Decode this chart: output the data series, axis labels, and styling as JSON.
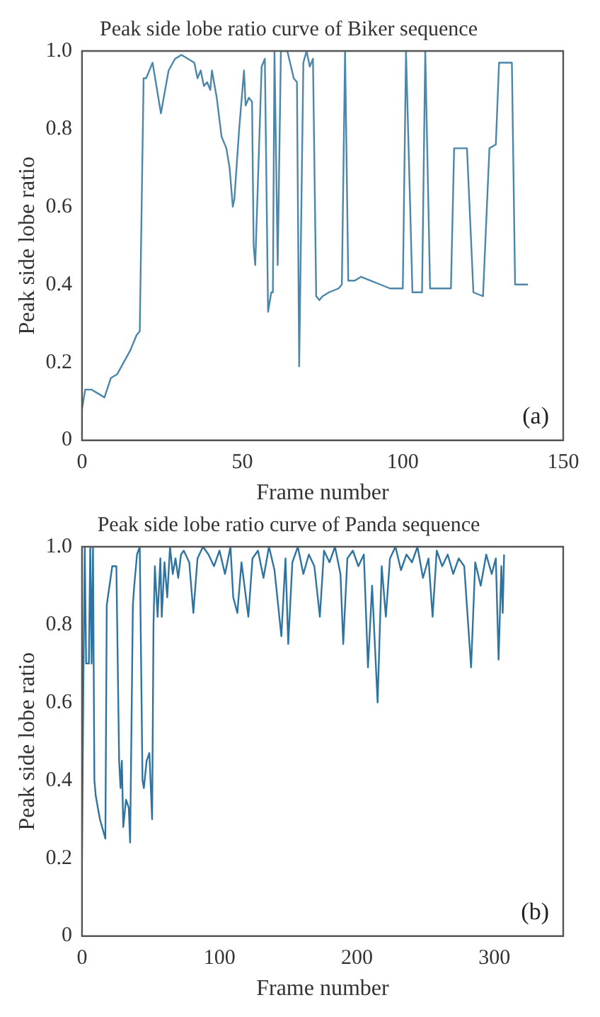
{
  "chart_data": [
    {
      "type": "line",
      "title": "Peak side lobe ratio curve of Biker sequence",
      "xlabel": "Frame number",
      "ylabel": "Peak side lobe ratio",
      "annotations": [
        "(a)"
      ],
      "xlim": [
        0,
        150
      ],
      "xticks": [
        0,
        50,
        100,
        150
      ],
      "ylim": [
        0,
        1
      ],
      "yticks": [
        0,
        0.2,
        0.4,
        0.6,
        0.8,
        {
          "value": 1,
          "label": "1.0"
        }
      ],
      "grid": false,
      "legend": false,
      "series": [
        {
          "color": "#4a87ab",
          "x": [
            0,
            1,
            3,
            5,
            7,
            9,
            11,
            13,
            15,
            17,
            18,
            19.2,
            20,
            21,
            22,
            24.6,
            27,
            29,
            31,
            33,
            35,
            36,
            37,
            38,
            39,
            40,
            40.5,
            42,
            43.5,
            45,
            46,
            47,
            47.5,
            49,
            50.5,
            51,
            52,
            53,
            53.5,
            54,
            56,
            57,
            58,
            59,
            59.5,
            60,
            61,
            62,
            64,
            66,
            67,
            67.7,
            69,
            70,
            71,
            72,
            73,
            74,
            75,
            77,
            80,
            81,
            82,
            83,
            85,
            87,
            90,
            93,
            96,
            100,
            101,
            103,
            106,
            107,
            108.5,
            115,
            116,
            120,
            122,
            125,
            127,
            129,
            130,
            134,
            135,
            139
          ],
          "values": [
            0.08,
            0.13,
            0.13,
            0.12,
            0.11,
            0.16,
            0.17,
            0.2,
            0.23,
            0.27,
            0.28,
            0.93,
            0.93,
            0.95,
            0.97,
            0.84,
            0.95,
            0.98,
            0.99,
            0.98,
            0.97,
            0.93,
            0.95,
            0.91,
            0.92,
            0.9,
            0.95,
            0.88,
            0.78,
            0.75,
            0.7,
            0.6,
            0.62,
            0.8,
            0.95,
            0.86,
            0.88,
            0.87,
            0.5,
            0.45,
            0.96,
            0.98,
            0.33,
            0.38,
            0.38,
            1.0,
            0.45,
            1.0,
            1.0,
            0.93,
            0.92,
            0.19,
            0.97,
            1.0,
            0.96,
            0.98,
            0.37,
            0.36,
            0.37,
            0.38,
            0.39,
            0.4,
            1.0,
            0.41,
            0.41,
            0.42,
            0.41,
            0.4,
            0.39,
            0.39,
            1.0,
            0.38,
            0.38,
            1.0,
            0.39,
            0.39,
            0.75,
            0.75,
            0.38,
            0.37,
            0.75,
            0.76,
            0.97,
            0.97,
            0.4,
            0.4
          ]
        }
      ]
    },
    {
      "type": "line",
      "title": "Peak side lobe ratio curve of Panda sequence",
      "xlabel": "Frame number",
      "ylabel": "Peak side lobe ratio",
      "annotations": [
        "(b)"
      ],
      "xlim": [
        0,
        350
      ],
      "xticks": [
        0,
        100,
        200,
        300
      ],
      "ylim": [
        0,
        1
      ],
      "yticks": [
        0,
        0.2,
        0.4,
        0.6,
        0.8,
        {
          "value": 1,
          "label": "1.0"
        }
      ],
      "grid": false,
      "legend": false,
      "series": [
        {
          "color": "#2f74a0",
          "x": [
            0,
            1,
            2,
            3,
            5,
            6,
            7,
            8,
            9,
            10,
            13,
            17,
            18,
            20,
            22,
            25,
            27,
            28,
            29,
            30,
            32,
            34,
            35,
            37,
            38,
            40,
            42,
            44,
            45,
            47,
            49,
            51,
            52,
            53,
            55,
            57,
            58,
            60,
            62,
            64,
            66,
            68,
            70,
            72,
            74,
            78,
            81,
            84,
            88,
            92,
            96,
            100,
            104,
            108,
            110,
            113,
            116,
            121,
            124,
            128,
            132,
            136,
            140,
            145,
            148,
            150,
            153,
            157,
            161,
            165,
            169,
            173,
            176,
            180,
            184,
            188,
            190,
            193,
            197,
            201,
            205,
            208,
            211,
            215,
            218,
            221,
            224,
            228,
            232,
            236,
            240,
            244,
            248,
            252,
            255,
            258,
            262,
            266,
            270,
            274,
            278,
            283,
            286,
            290,
            294,
            298,
            301,
            303,
            305,
            306,
            307
          ],
          "values": [
            0.2,
            0.65,
            1.0,
            0.7,
            0.7,
            1.0,
            0.7,
            1.0,
            0.4,
            0.36,
            0.3,
            0.25,
            0.85,
            0.9,
            0.95,
            0.95,
            0.45,
            0.38,
            0.45,
            0.28,
            0.35,
            0.33,
            0.24,
            0.85,
            0.9,
            0.98,
            1.0,
            0.4,
            0.38,
            0.45,
            0.47,
            0.3,
            0.8,
            0.95,
            0.82,
            0.97,
            0.82,
            0.96,
            0.87,
            1.0,
            0.93,
            0.97,
            0.92,
            0.98,
            0.99,
            0.96,
            0.83,
            0.97,
            1.0,
            0.98,
            0.95,
            0.99,
            0.93,
            1.0,
            0.87,
            0.83,
            0.96,
            0.82,
            0.97,
            0.99,
            0.92,
            1.0,
            0.94,
            0.77,
            0.97,
            0.75,
            0.96,
            1.0,
            0.93,
            0.98,
            0.95,
            0.82,
            0.99,
            0.96,
            1.0,
            0.93,
            0.75,
            0.97,
            0.99,
            0.95,
            0.98,
            0.69,
            0.9,
            0.6,
            0.95,
            0.82,
            0.97,
            1.0,
            0.94,
            0.98,
            0.96,
            1.0,
            0.92,
            0.97,
            0.82,
            0.99,
            0.95,
            0.98,
            0.93,
            0.97,
            0.95,
            0.69,
            0.96,
            0.9,
            0.98,
            0.93,
            0.97,
            0.71,
            0.95,
            0.83,
            0.98
          ]
        }
      ]
    }
  ]
}
